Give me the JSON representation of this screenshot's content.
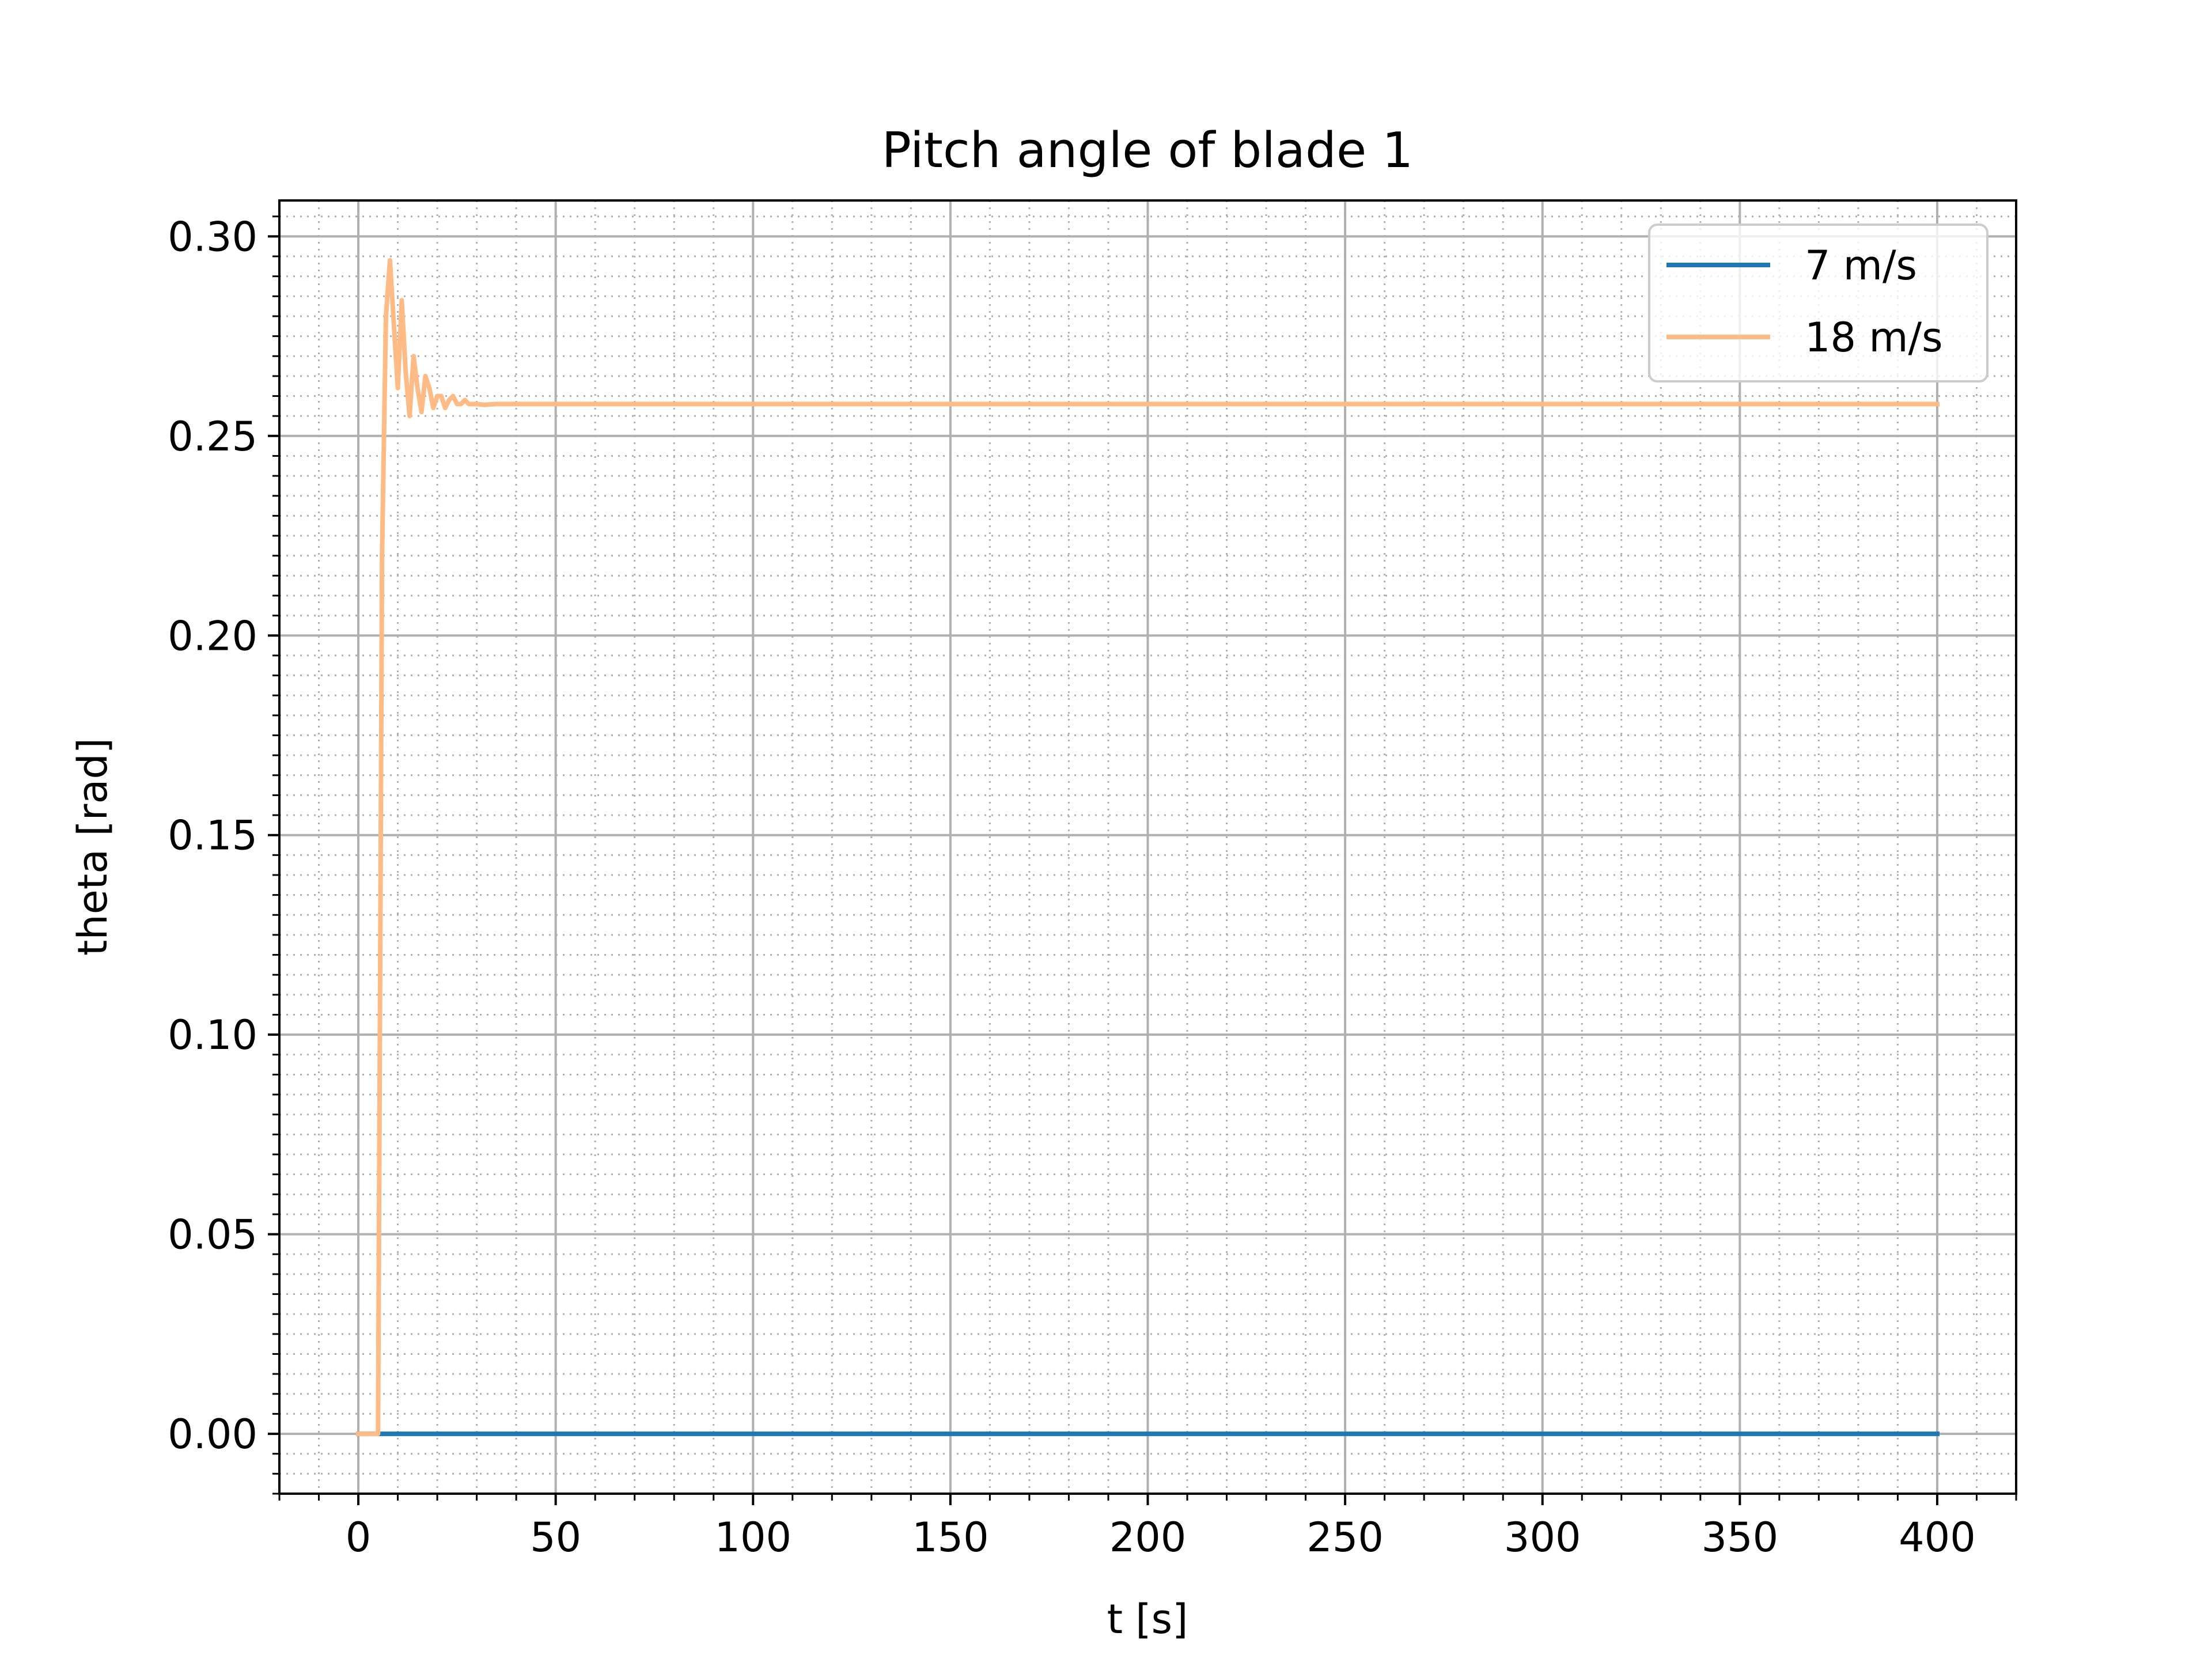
{
  "chart_data": {
    "type": "line",
    "title": "Pitch angle of blade 1",
    "xlabel": "t [s]",
    "ylabel": "theta [rad]",
    "xlim": [
      -20,
      420
    ],
    "ylim": [
      -0.015,
      0.309
    ],
    "xticks": [
      0,
      50,
      100,
      150,
      200,
      250,
      300,
      350,
      400
    ],
    "xtick_labels": [
      "0",
      "50",
      "100",
      "150",
      "200",
      "250",
      "300",
      "350",
      "400"
    ],
    "yticks": [
      0.0,
      0.05,
      0.1,
      0.15,
      0.2,
      0.25,
      0.3
    ],
    "ytick_labels": [
      "0.00",
      "0.05",
      "0.10",
      "0.15",
      "0.20",
      "0.25",
      "0.30"
    ],
    "grid": "major solid, minor dotted",
    "legend_position": "upper right",
    "series": [
      {
        "name": "7 m/s",
        "color": "#1f77b4",
        "x": [
          0,
          400
        ],
        "y": [
          0,
          0
        ]
      },
      {
        "name": "18 m/s",
        "color": "#ffbb85",
        "x": [
          0,
          5,
          6,
          7,
          8,
          9,
          10,
          11,
          12,
          13,
          14,
          15,
          16,
          17,
          18,
          19,
          20,
          21,
          22,
          23,
          24,
          25,
          26,
          27,
          28,
          30,
          32,
          35,
          40,
          100,
          200,
          300,
          400
        ],
        "y": [
          0,
          0,
          0.22,
          0.28,
          0.294,
          0.278,
          0.262,
          0.284,
          0.266,
          0.255,
          0.27,
          0.262,
          0.256,
          0.265,
          0.262,
          0.257,
          0.26,
          0.26,
          0.257,
          0.259,
          0.26,
          0.258,
          0.258,
          0.259,
          0.258,
          0.258,
          0.2578,
          0.258,
          0.258,
          0.258,
          0.258,
          0.258,
          0.258
        ]
      }
    ]
  }
}
